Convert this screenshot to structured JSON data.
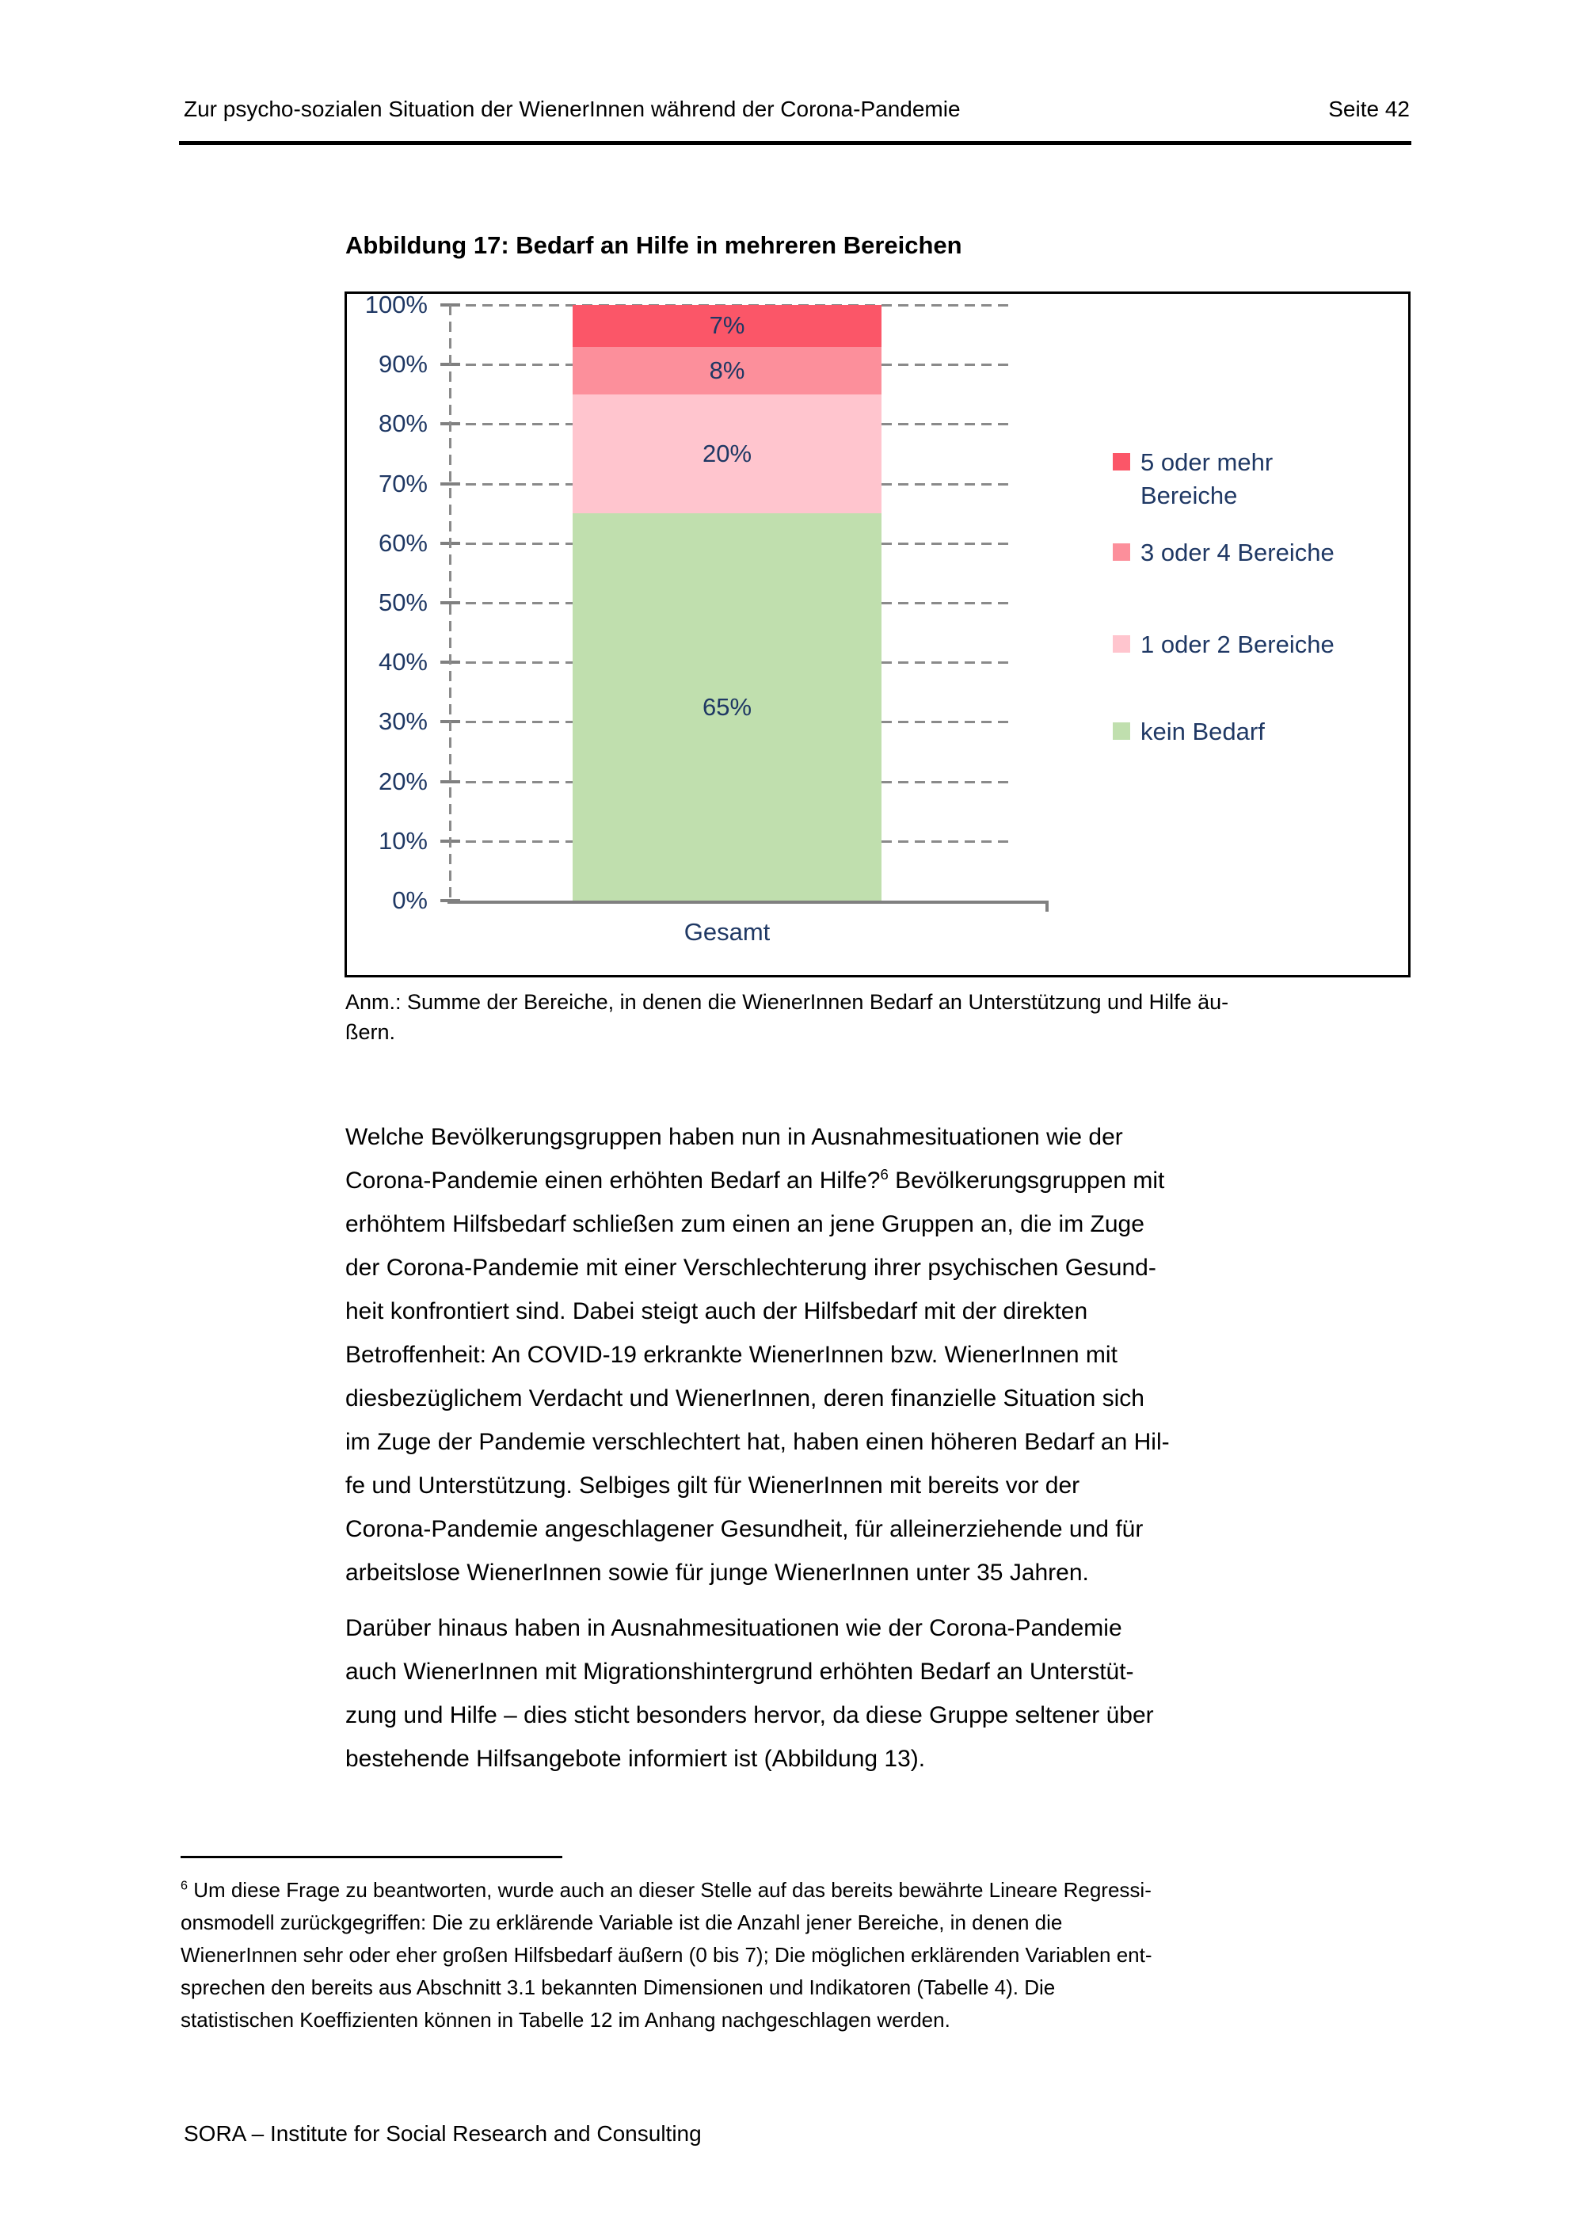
{
  "header": {
    "title": "Zur psycho-sozialen Situation der WienerInnen während der Corona-Pandemie",
    "page_number": "Seite 42"
  },
  "figure": {
    "title": "Abbildung 17: Bedarf an Hilfe in mehreren Bereichen",
    "note": "Anm.: Summe der Bereiche, in denen die WienerInnen Bedarf an Unterstützung und Hilfe äu-\nßern."
  },
  "chart_data": {
    "type": "bar",
    "stacked": true,
    "categories": [
      "Gesamt"
    ],
    "series": [
      {
        "name": "5 oder mehr Bereiche",
        "values": [
          7
        ],
        "color": "#FB5668"
      },
      {
        "name": "3 oder 4 Bereiche",
        "values": [
          8
        ],
        "color": "#FC8F9B"
      },
      {
        "name": "1 oder 2 Bereiche",
        "values": [
          20
        ],
        "color": "#FFC5CE"
      },
      {
        "name": "kein Bedarf",
        "values": [
          65
        ],
        "color": "#C0DFAE"
      }
    ],
    "ylim": [
      0,
      100
    ],
    "y_tick_step": 10,
    "y_tick_labels": [
      "0%",
      "10%",
      "20%",
      "30%",
      "40%",
      "50%",
      "60%",
      "70%",
      "80%",
      "90%",
      "100%"
    ],
    "grid": "horizontal dashed gray",
    "legend_position": "right",
    "text_color": "#1F3864"
  },
  "body": {
    "p1_pre": "Welche Bevölkerungsgruppen haben nun in Ausnahmesituationen wie der\nCorona-Pandemie einen erhöhten Bedarf an Hilfe?",
    "p1_sup": "6",
    "p1_post": " Bevölkerungsgruppen mit\nerhöhtem Hilfsbedarf schließen zum einen an jene Gruppen an, die im Zuge\nder Corona-Pandemie mit einer Verschlechterung ihrer psychischen Gesund-\nheit konfrontiert sind. Dabei steigt auch der Hilfsbedarf mit der direkten\nBetroffenheit: An COVID-19 erkrankte WienerInnen bzw. WienerInnen mit\ndiesbezüglichem Verdacht und WienerInnen, deren finanzielle Situation sich\nim Zuge der Pandemie verschlechtert hat, haben einen höheren Bedarf an Hil-\nfe und Unterstützung. Selbiges gilt für WienerInnen mit bereits vor der\nCorona-Pandemie angeschlagener Gesundheit, für alleinerziehende und für\narbeitslose WienerInnen sowie für junge WienerInnen unter 35 Jahren.",
    "p2": "Darüber hinaus haben in Ausnahmesituationen wie der Corona-Pandemie\nauch WienerInnen mit Migrationshintergrund erhöhten Bedarf an Unterstüt-\nzung und Hilfe – dies sticht besonders hervor, da diese Gruppe seltener über\nbestehende Hilfsangebote informiert ist (Abbildung 13)."
  },
  "footnote": {
    "marker": "6",
    "text": " Um diese Frage zu beantworten, wurde auch an dieser Stelle auf das bereits bewährte Lineare Regressi-\nonsmodell zurückgegriffen: Die zu erklärende Variable ist die Anzahl jener Bereiche, in denen die\nWienerInnen sehr oder eher großen Hilfsbedarf äußern (0 bis 7); Die möglichen erklärenden Variablen ent-\nsprechen den bereits aus Abschnitt 3.1 bekannten Dimensionen und Indikatoren (Tabelle 4). Die\nstatistischen Koeffizienten können in Tabelle 12 im Anhang nachgeschlagen werden."
  },
  "footer": {
    "text": "SORA – Institute for Social Research and Consulting"
  }
}
